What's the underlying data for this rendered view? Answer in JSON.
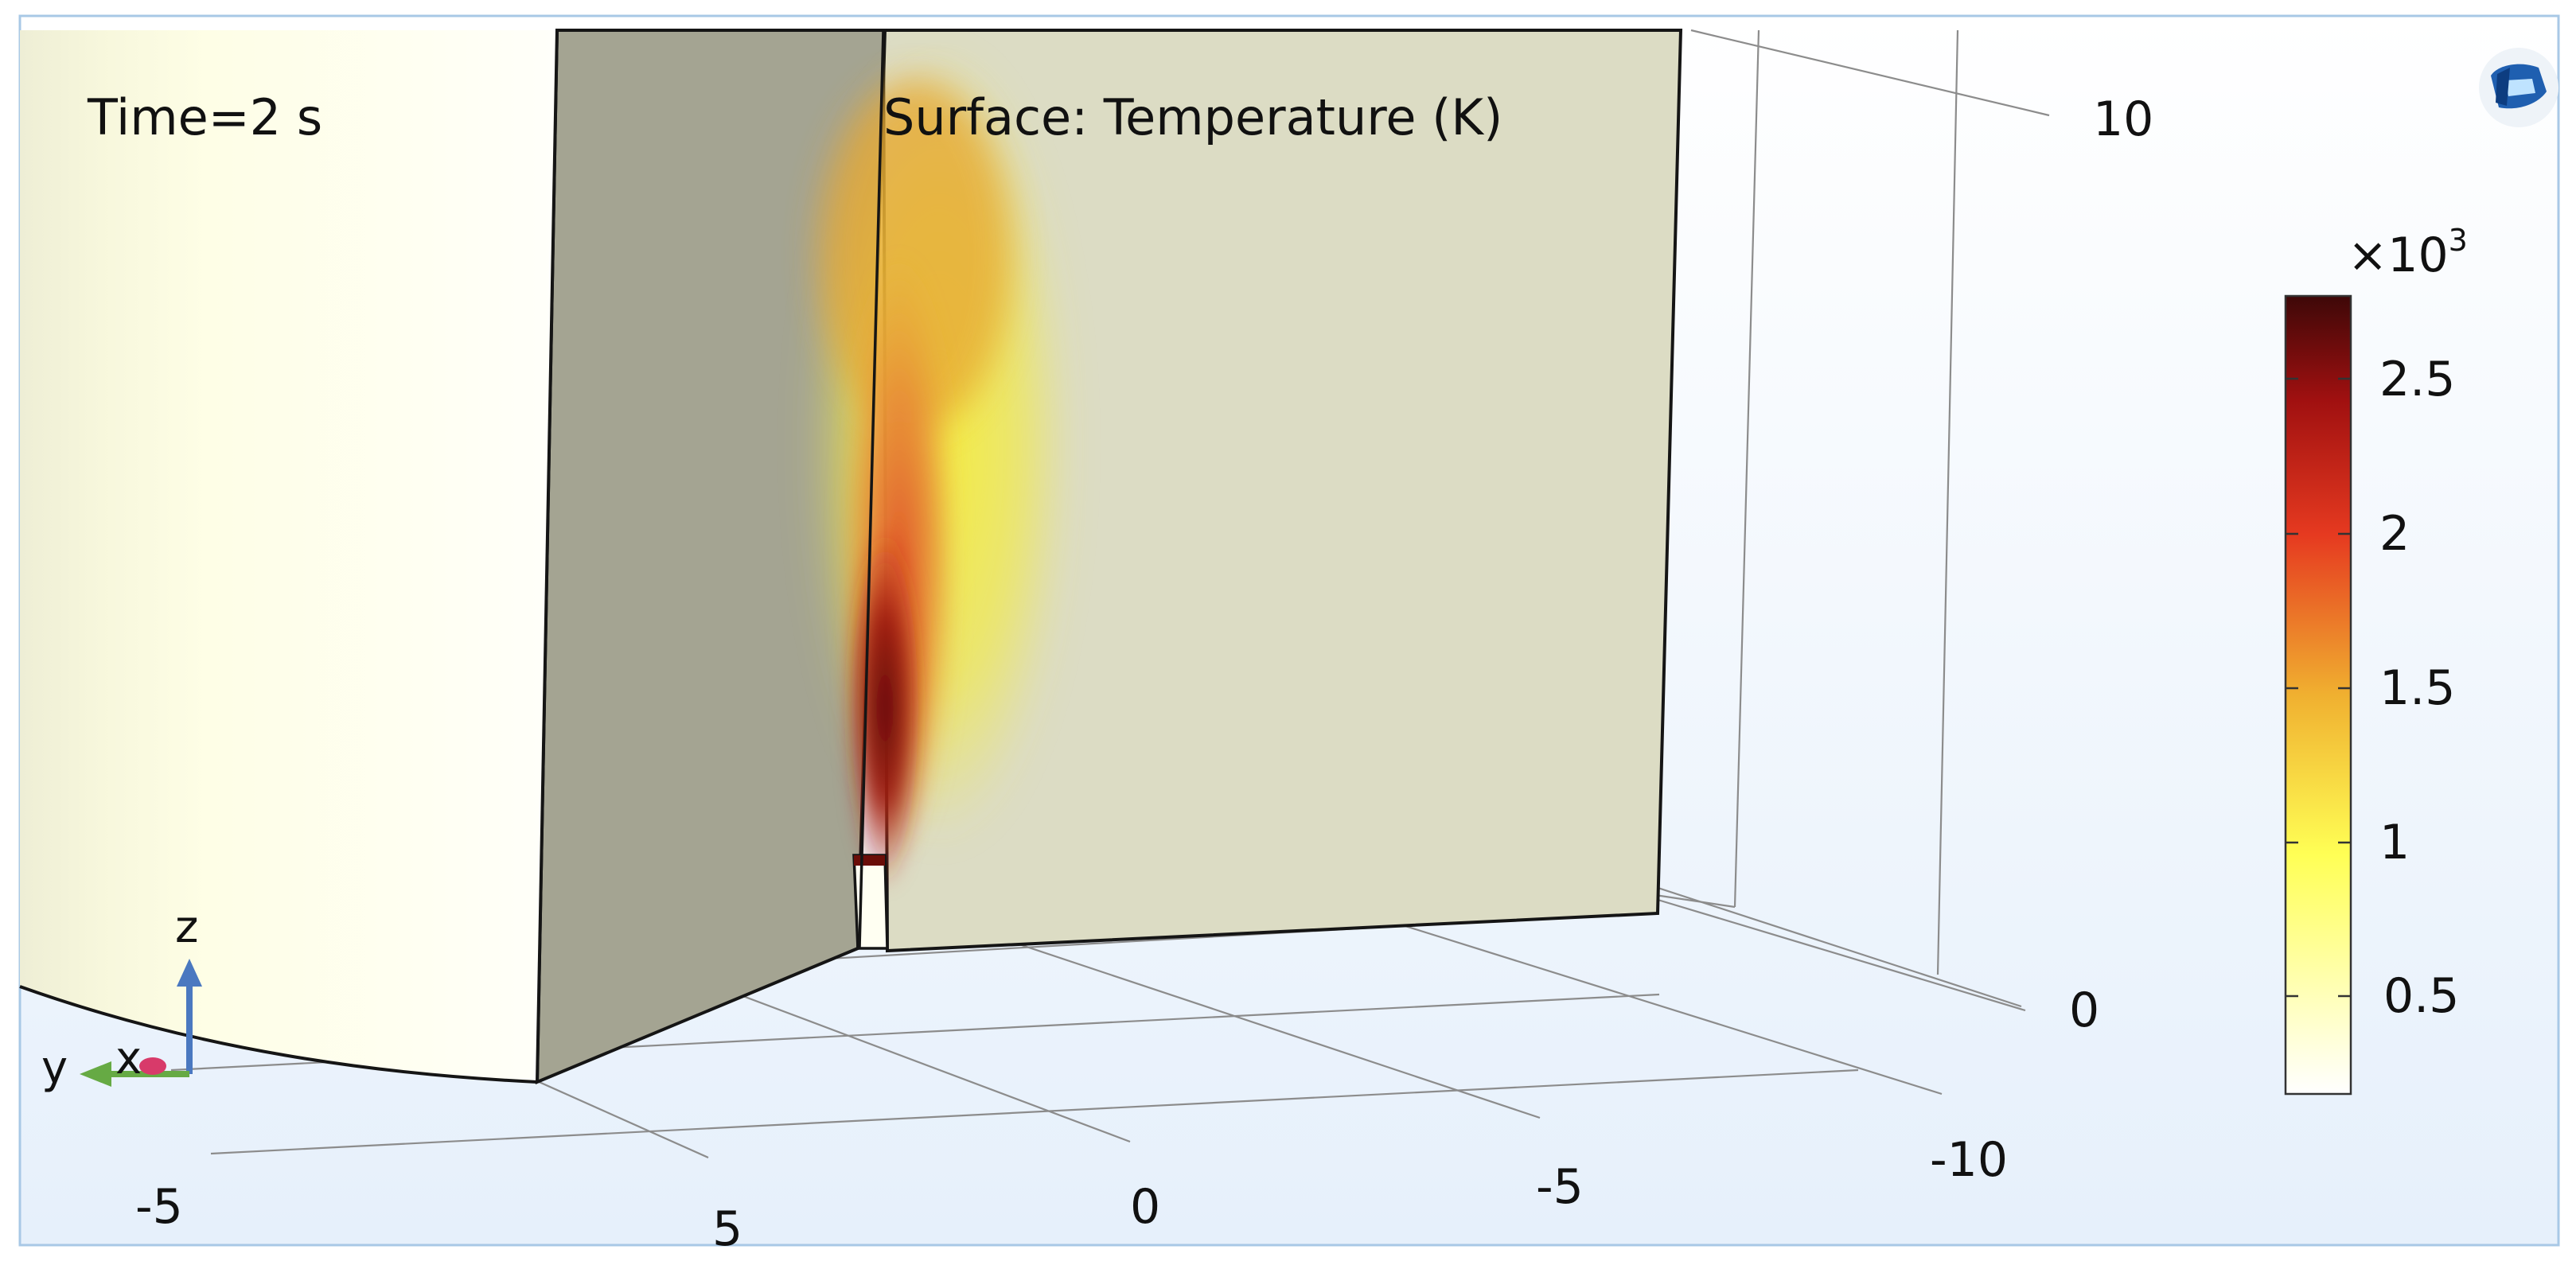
{
  "plot": {
    "time_label": "Time=2 s",
    "surface_label": "Surface: Temperature (K)"
  },
  "colorbar": {
    "multiplier": "×10",
    "multiplier_exp": "3",
    "ticks": [
      "2.5",
      "2",
      "1.5",
      "1",
      "0.5"
    ],
    "range": [
      0.2,
      2.75
    ],
    "colormap": [
      "#ffffff",
      "#ffff55",
      "#f0b030",
      "#e63a20",
      "#a01010",
      "#3e0808"
    ]
  },
  "axes": {
    "z_ticks": [
      "10",
      "0"
    ],
    "y_ticks": [
      "-10",
      "-5",
      "0",
      "5"
    ],
    "x_ticks": [
      "-5"
    ]
  },
  "triad": {
    "z": "z",
    "y": "y",
    "x": "x"
  },
  "logo": {
    "icon": "comsol-logo-icon"
  }
}
